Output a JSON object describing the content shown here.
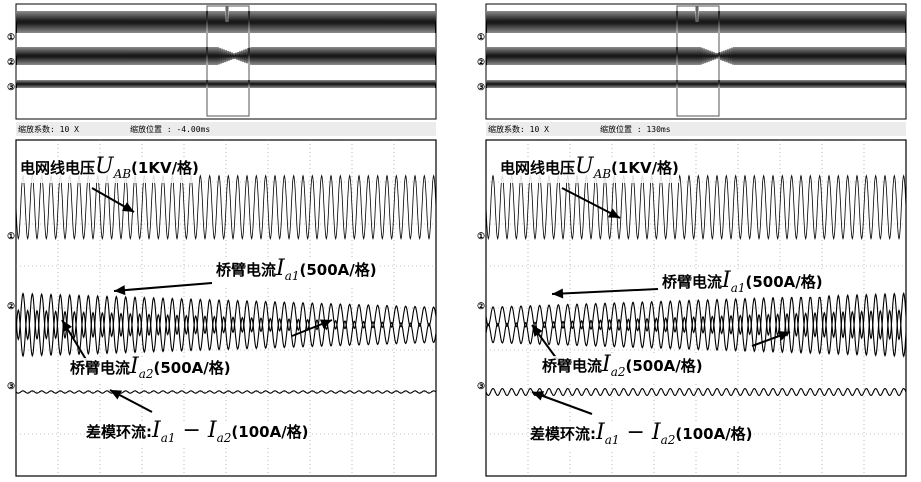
{
  "panels": [
    {
      "zoom_factor_label": "缩放系数: 10 X",
      "zoom_position_label": "缩放位置 : -4.00ms",
      "annotations": {
        "grid_voltage": {
          "text": "电网线电压",
          "sym": "U",
          "sub": "AB",
          "unit": "(1KV/格)"
        },
        "arm_current_1": {
          "text": "桥臂电流",
          "sym": "I",
          "sub": "a1",
          "unit": "(500A/格)"
        },
        "arm_current_2": {
          "text": "桥臂电流",
          "sym": "I",
          "sub": "a2",
          "unit": "(500A/格)"
        },
        "circulating": {
          "text": "差模环流:",
          "sym1": "I",
          "sub1": "a1",
          "minus": " − ",
          "sym2": "I",
          "sub2": "a2",
          "unit": "(100A/格)"
        }
      }
    },
    {
      "zoom_factor_label": "缩放系数: 10 X",
      "zoom_position_label": "缩放位置 : 130ms",
      "annotations": {
        "grid_voltage": {
          "text": "电网线电压",
          "sym": "U",
          "sub": "AB",
          "unit": "(1KV/格)"
        },
        "arm_current_1": {
          "text": "桥臂电流",
          "sym": "I",
          "sub": "a1",
          "unit": "(500A/格)"
        },
        "arm_current_2": {
          "text": "桥臂电流",
          "sym": "I",
          "sub": "a2",
          "unit": "(500A/格)"
        },
        "circulating": {
          "text": "差模环流:",
          "sym1": "I",
          "sub1": "a1",
          "minus": " − ",
          "sym2": "I",
          "sub2": "a2",
          "unit": "(100A/格)"
        }
      }
    }
  ],
  "chart_data": [
    {
      "type": "line",
      "title": "",
      "grid": true,
      "divisions": {
        "x": 10,
        "y": 8
      },
      "series": [
        {
          "name": "电网线电压 UAB (1KV/格)",
          "cycles": 45,
          "amplitude_div": [
            1.0,
            1.0
          ]
        },
        {
          "name": "桥臂电流 Ia1 (500A/格)",
          "cycles": 45,
          "amplitude_div": [
            1.0,
            0.4
          ]
        },
        {
          "name": "桥臂电流 Ia2 (500A/格)",
          "cycles": 45,
          "amplitude_div": [
            1.0,
            0.4
          ]
        },
        {
          "name": "差模环流 Ia1 − Ia2 (100A/格)",
          "cycles": 45,
          "amplitude_div": [
            0.05,
            0.05
          ]
        }
      ]
    },
    {
      "type": "line",
      "title": "",
      "grid": true,
      "divisions": {
        "x": 10,
        "y": 8
      },
      "series": [
        {
          "name": "电网线电压 UAB (1KV/格)",
          "cycles": 45,
          "amplitude_div": [
            1.0,
            1.0
          ]
        },
        {
          "name": "桥臂电流 Ia1 (500A/格)",
          "cycles": 45,
          "amplitude_div": [
            0.4,
            1.0
          ]
        },
        {
          "name": "桥臂电流 Ia2 (500A/格)",
          "cycles": 45,
          "amplitude_div": [
            0.4,
            1.0
          ]
        },
        {
          "name": "差模环流 Ia1 − Ia2 (100A/格)",
          "cycles": 45,
          "amplitude_div": [
            0.15,
            0.15
          ]
        }
      ]
    }
  ]
}
